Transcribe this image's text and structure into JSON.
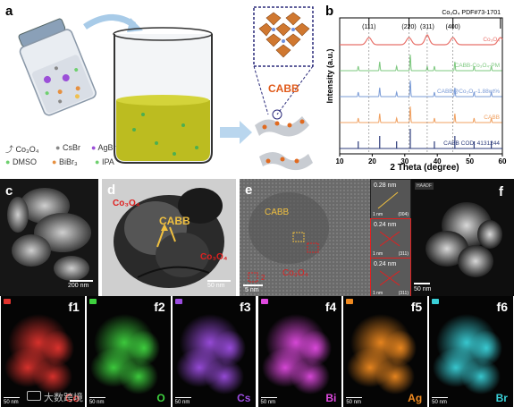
{
  "panels": {
    "a": "a",
    "b": "b",
    "c": "c",
    "d": "d",
    "e": "e",
    "f": "f",
    "f1": "f1",
    "f2": "f2",
    "f3": "f3",
    "f4": "f4",
    "f5": "f5",
    "f6": "f6"
  },
  "schematic": {
    "product_label": "CABB",
    "legend": {
      "co3o4": "Co₃O₄",
      "csbr": "CsBr",
      "agbr": "AgBr",
      "dmso": "DMSO",
      "bibr3": "BiBr₃",
      "ipa": "IPA"
    }
  },
  "xrd": {
    "ylabel": "Intensity (a.u.)",
    "xlabel": "2 Theta (degree)",
    "ref_top": "Co₃O₄ PDF#73-1701",
    "peaks": [
      "(111)",
      "(220)",
      "(311)",
      "(400)"
    ],
    "series_labels": [
      "Co₃O₄",
      "CABB-Co₃O₄-PM",
      "CABB@Co₃O₄-1.88wt%",
      "CABB",
      "CABB COD: 4131244"
    ],
    "series_colors": [
      "#e8716a",
      "#7dc87f",
      "#7a9bd6",
      "#f0a060",
      "#2b3a7a"
    ],
    "xticks": [
      "10",
      "20",
      "30",
      "40",
      "50",
      "60"
    ]
  },
  "chart_data": {
    "type": "line",
    "title": "",
    "xlabel": "2 Theta (degree)",
    "ylabel": "Intensity (a.u.)",
    "xlim": [
      10,
      60
    ],
    "series": [
      {
        "name": "Co₃O₄",
        "peaks": [
          19,
          31.3,
          36.9,
          44.8,
          59.4
        ]
      },
      {
        "name": "CABB-Co₃O₄-PM",
        "peaks": [
          15.7,
          22.3,
          27.5,
          31.7,
          36.9,
          39.1,
          45.4,
          51.3,
          56.6
        ]
      },
      {
        "name": "CABB@Co₃O₄-1.88wt%",
        "peaks": [
          15.7,
          22.3,
          27.5,
          31.7,
          39.1,
          45.4,
          51.3,
          56.6
        ]
      },
      {
        "name": "CABB",
        "peaks": [
          15.7,
          22.3,
          27.5,
          31.7,
          39.1,
          45.4,
          51.3,
          56.6
        ]
      },
      {
        "name": "CABB COD: 4131244",
        "peaks": [
          15.7,
          22.3,
          27.5,
          31.7,
          39.1,
          45.4,
          51.3,
          56.6
        ]
      }
    ]
  },
  "tem": {
    "c_scale": "200 nm",
    "d_label_top": "Co₃O₄",
    "d_label_cabb": "CABB",
    "d_label_bottom": "Co₃O₄",
    "d_scale": "50 nm",
    "e_label_cabb": "CABB",
    "e_label_co": "Co₃O₄",
    "e_scale": "5 nm",
    "e_box_label": "2",
    "fft": [
      {
        "d": "0.28 nm",
        "plane": "(004)",
        "scale": "1 nm"
      },
      {
        "d": "0.24 nm",
        "plane": "(311)",
        "scale": "1 nm"
      },
      {
        "d": "0.24 nm",
        "plane": "(311)",
        "scale": "1 nm"
      }
    ],
    "f_scale": "50 nm",
    "f_tag": "HAADF"
  },
  "maps": [
    {
      "id": "f1",
      "element": "Co",
      "color": "#e0332e",
      "scale": "50 nm"
    },
    {
      "id": "f2",
      "element": "O",
      "color": "#3fd23f",
      "scale": "50 nm"
    },
    {
      "id": "f3",
      "element": "Cs",
      "color": "#9c4de0",
      "scale": "50 nm"
    },
    {
      "id": "f4",
      "element": "Bi",
      "color": "#e04ae0",
      "scale": "50 nm"
    },
    {
      "id": "f5",
      "element": "Ag",
      "color": "#f08a20",
      "scale": "50 nm"
    },
    {
      "id": "f6",
      "element": "Br",
      "color": "#3ad0d8",
      "scale": "50 nm"
    }
  ],
  "watermark": "大数跨境"
}
